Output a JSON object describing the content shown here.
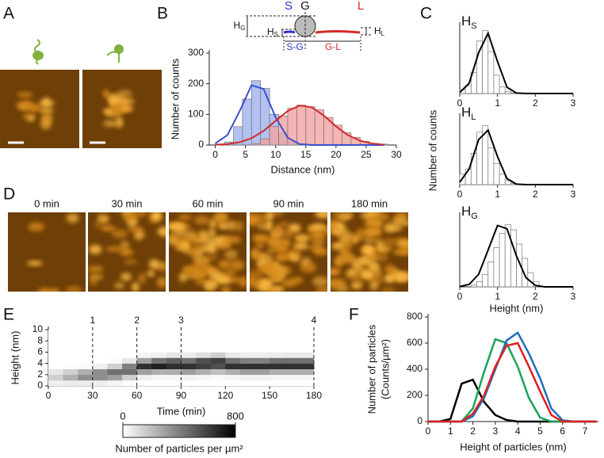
{
  "panel_labels": [
    "A",
    "B",
    "C",
    "D",
    "E",
    "F"
  ],
  "diagram": {
    "s": "S",
    "g": "G",
    "l": "L",
    "h_g": {
      "base": "H",
      "sub": "G"
    },
    "h_s": {
      "base": "H",
      "sub": "S"
    },
    "h_l": {
      "base": "H",
      "sub": "L"
    },
    "s_g": "S-G",
    "g_l": "G-L"
  },
  "time_labels": [
    "0 min",
    "30 min",
    "60 min",
    "90 min",
    "180 min"
  ],
  "chart_data": [
    {
      "type": "histogram",
      "xlabel": "Distance (nm)",
      "ylabel": "Number of counts",
      "xlim": [
        -1,
        30
      ],
      "ylim": [
        0,
        300
      ],
      "xticks": [
        0,
        5,
        10,
        15,
        20,
        25,
        30
      ],
      "yticks": [
        0,
        100,
        200,
        300
      ],
      "bins": [
        1.5,
        3,
        4.5,
        6,
        7.5,
        9,
        10.5,
        12,
        13.5,
        15,
        16.5,
        18,
        19.5,
        21,
        22.5,
        24,
        25.5,
        27,
        28.5
      ],
      "fit_x": [
        0,
        2,
        4,
        6,
        8,
        10,
        12,
        14,
        16,
        18,
        20,
        22,
        24,
        26,
        28
      ],
      "series": [
        {
          "color": "#9fb2ee",
          "fit_color": "#3a4fd0",
          "values": [
            10,
            60,
            150,
            210,
            185,
            100,
            40,
            10,
            0,
            0,
            0,
            0,
            0,
            0,
            0,
            0,
            0,
            0
          ],
          "fit_values": [
            5,
            32,
            109,
            195,
            183,
            90,
            24,
            3,
            0,
            0,
            0,
            0,
            0,
            0,
            0
          ]
        },
        {
          "color": "#f2a3a3",
          "fit_color": "#d42a2a",
          "values": [
            0,
            0,
            0,
            5,
            20,
            60,
            95,
            120,
            130,
            125,
            115,
            90,
            65,
            40,
            25,
            12,
            5,
            3
          ],
          "fit_values": [
            1,
            3,
            9,
            22,
            46,
            79,
            111,
            129,
            123,
            96,
            61,
            32,
            14,
            5,
            1
          ]
        }
      ]
    },
    {
      "type": "histogram",
      "title": {
        "base": "H",
        "sub": "S"
      },
      "xlim": [
        0,
        3
      ],
      "ylim": [
        0,
        260
      ],
      "xticks": [
        0,
        1,
        2,
        3
      ],
      "bins": [
        0,
        0.15,
        0.3,
        0.45,
        0.6,
        0.75,
        0.9,
        1.05,
        1.2,
        1.35,
        1.5
      ],
      "fit_x": [
        0,
        0.25,
        0.5,
        0.75,
        1,
        1.25,
        1.5,
        1.75,
        2,
        2.25,
        2.5,
        2.75,
        3
      ],
      "series": [
        {
          "color": "#ffffff",
          "fit_color": "#000000",
          "values": [
            15,
            30,
            80,
            200,
            240,
            160,
            70,
            25,
            8,
            2
          ],
          "fit_values": [
            4,
            39,
            156,
            230,
            122,
            24,
            2,
            0,
            0,
            0,
            0,
            0,
            0
          ]
        }
      ]
    },
    {
      "type": "histogram",
      "title": {
        "base": "H",
        "sub": "L"
      },
      "ylabel": "Number of counts",
      "xlim": [
        0,
        3
      ],
      "ylim": [
        0,
        260
      ],
      "xticks": [
        0,
        1,
        2,
        3
      ],
      "bins": [
        0,
        0.15,
        0.3,
        0.45,
        0.6,
        0.75,
        0.9,
        1.05,
        1.2,
        1.35,
        1.5
      ],
      "fit_x": [
        0,
        0.25,
        0.5,
        0.75,
        1,
        1.25,
        1.5,
        1.75,
        2,
        2.25,
        2.5,
        2.75,
        3
      ],
      "series": [
        {
          "color": "#ffffff",
          "fit_color": "#000000",
          "values": [
            40,
            60,
            120,
            200,
            225,
            140,
            80,
            40,
            15,
            5
          ],
          "fit_values": [
            9,
            60,
            172,
            208,
            107,
            23,
            2,
            0,
            0,
            0,
            0,
            0,
            0
          ]
        }
      ]
    },
    {
      "type": "histogram",
      "title": {
        "base": "H",
        "sub": "G"
      },
      "xlabel": "Height (nm)",
      "xlim": [
        0,
        3
      ],
      "ylim": [
        0,
        200
      ],
      "xticks": [
        0,
        1,
        2,
        3
      ],
      "bins": [
        0.3,
        0.45,
        0.6,
        0.75,
        0.9,
        1.05,
        1.2,
        1.35,
        1.5,
        1.65,
        1.8,
        1.95,
        2.1
      ],
      "fit_x": [
        0,
        0.25,
        0.5,
        0.75,
        1,
        1.25,
        1.5,
        1.75,
        2,
        2.25,
        2.5,
        2.75,
        3
      ],
      "series": [
        {
          "color": "#ffffff",
          "fit_color": "#000000",
          "values": [
            5,
            15,
            35,
            70,
            110,
            150,
            175,
            160,
            120,
            80,
            40,
            15
          ],
          "fit_values": [
            1,
            7,
            35,
            103,
            172,
            163,
            87,
            26,
            4,
            0,
            0,
            0,
            0
          ]
        }
      ]
    },
    {
      "type": "heatmap",
      "xlabel": "Time (min)",
      "ylabel": "Height (nm)",
      "xlim": [
        0,
        180
      ],
      "ylim": [
        0,
        10
      ],
      "xticks": [
        0,
        30,
        60,
        90,
        120,
        150,
        180
      ],
      "yticks": [
        0,
        2,
        4,
        6,
        8,
        10
      ],
      "x_bins": [
        0,
        10,
        20,
        30,
        40,
        50,
        60,
        70,
        80,
        90,
        100,
        110,
        120,
        130,
        140,
        150,
        160,
        170,
        180
      ],
      "y_bins": [
        0,
        1,
        2,
        3,
        4,
        5,
        6,
        7,
        8,
        9,
        10
      ],
      "z": [
        [
          50,
          150,
          80,
          0,
          0,
          0,
          0,
          0,
          0,
          0
        ],
        [
          60,
          250,
          150,
          10,
          0,
          0,
          0,
          0,
          0,
          0
        ],
        [
          60,
          350,
          250,
          20,
          0,
          0,
          0,
          0,
          0,
          0
        ],
        [
          50,
          350,
          350,
          50,
          0,
          0,
          0,
          0,
          0,
          0
        ],
        [
          30,
          300,
          450,
          150,
          10,
          0,
          0,
          0,
          0,
          0
        ],
        [
          10,
          150,
          450,
          400,
          80,
          0,
          0,
          0,
          0,
          0
        ],
        [
          0,
          50,
          300,
          650,
          300,
          30,
          0,
          0,
          0,
          0
        ],
        [
          0,
          30,
          250,
          700,
          450,
          50,
          0,
          0,
          0,
          0
        ],
        [
          0,
          30,
          250,
          650,
          500,
          80,
          0,
          0,
          0,
          0
        ],
        [
          0,
          40,
          300,
          650,
          450,
          60,
          0,
          0,
          0,
          0
        ],
        [
          0,
          30,
          250,
          600,
          550,
          100,
          0,
          0,
          0,
          0
        ],
        [
          0,
          20,
          200,
          550,
          600,
          150,
          0,
          0,
          0,
          0
        ],
        [
          0,
          30,
          250,
          650,
          450,
          70,
          0,
          0,
          0,
          0
        ],
        [
          0,
          40,
          300,
          650,
          400,
          50,
          0,
          0,
          0,
          0
        ],
        [
          0,
          40,
          300,
          650,
          400,
          50,
          0,
          0,
          0,
          0
        ],
        [
          0,
          30,
          250,
          650,
          450,
          60,
          0,
          0,
          0,
          0
        ],
        [
          0,
          30,
          250,
          650,
          450,
          70,
          0,
          0,
          0,
          0
        ],
        [
          0,
          30,
          250,
          650,
          450,
          70,
          0,
          0,
          0,
          0
        ]
      ],
      "clim": [
        0,
        800
      ],
      "colorbar_ticks": [
        0,
        800
      ],
      "colorbar_label": "Number of particles per µm²",
      "markers": [
        {
          "x": 30,
          "label": "1"
        },
        {
          "x": 60,
          "label": "2"
        },
        {
          "x": 90,
          "label": "3"
        },
        {
          "x": 180,
          "label": "4"
        }
      ]
    },
    {
      "type": "line",
      "xlabel": "Height of particles (nm)",
      "ylabel": [
        "Number of particles",
        "(Counts/µm²)"
      ],
      "xlim": [
        0,
        7.6
      ],
      "ylim": [
        0,
        800
      ],
      "xticks": [
        0,
        1,
        2,
        3,
        4,
        5,
        6,
        7
      ],
      "yticks": [
        0,
        200,
        400,
        600,
        800
      ],
      "x": [
        0,
        0.5,
        1,
        1.5,
        2,
        2.5,
        3,
        3.5,
        4,
        4.5,
        5,
        5.5,
        6,
        6.5,
        7,
        7.5
      ],
      "series": [
        {
          "color": "#000000",
          "values": [
            0,
            0,
            20,
            290,
            320,
            150,
            50,
            12,
            0,
            0,
            0,
            0,
            0,
            0,
            0,
            0
          ]
        },
        {
          "color": "#1aa35a",
          "values": [
            0,
            0,
            0,
            0,
            100,
            380,
            630,
            600,
            420,
            180,
            30,
            0,
            0,
            0,
            0,
            0
          ]
        },
        {
          "color": "#1f6fc0",
          "values": [
            0,
            0,
            0,
            0,
            40,
            180,
            400,
            620,
            680,
            520,
            330,
            100,
            10,
            0,
            0,
            0
          ]
        },
        {
          "color": "#e0201e",
          "values": [
            0,
            0,
            0,
            0,
            60,
            200,
            420,
            580,
            600,
            420,
            230,
            50,
            0,
            0,
            0,
            0
          ]
        }
      ]
    }
  ]
}
